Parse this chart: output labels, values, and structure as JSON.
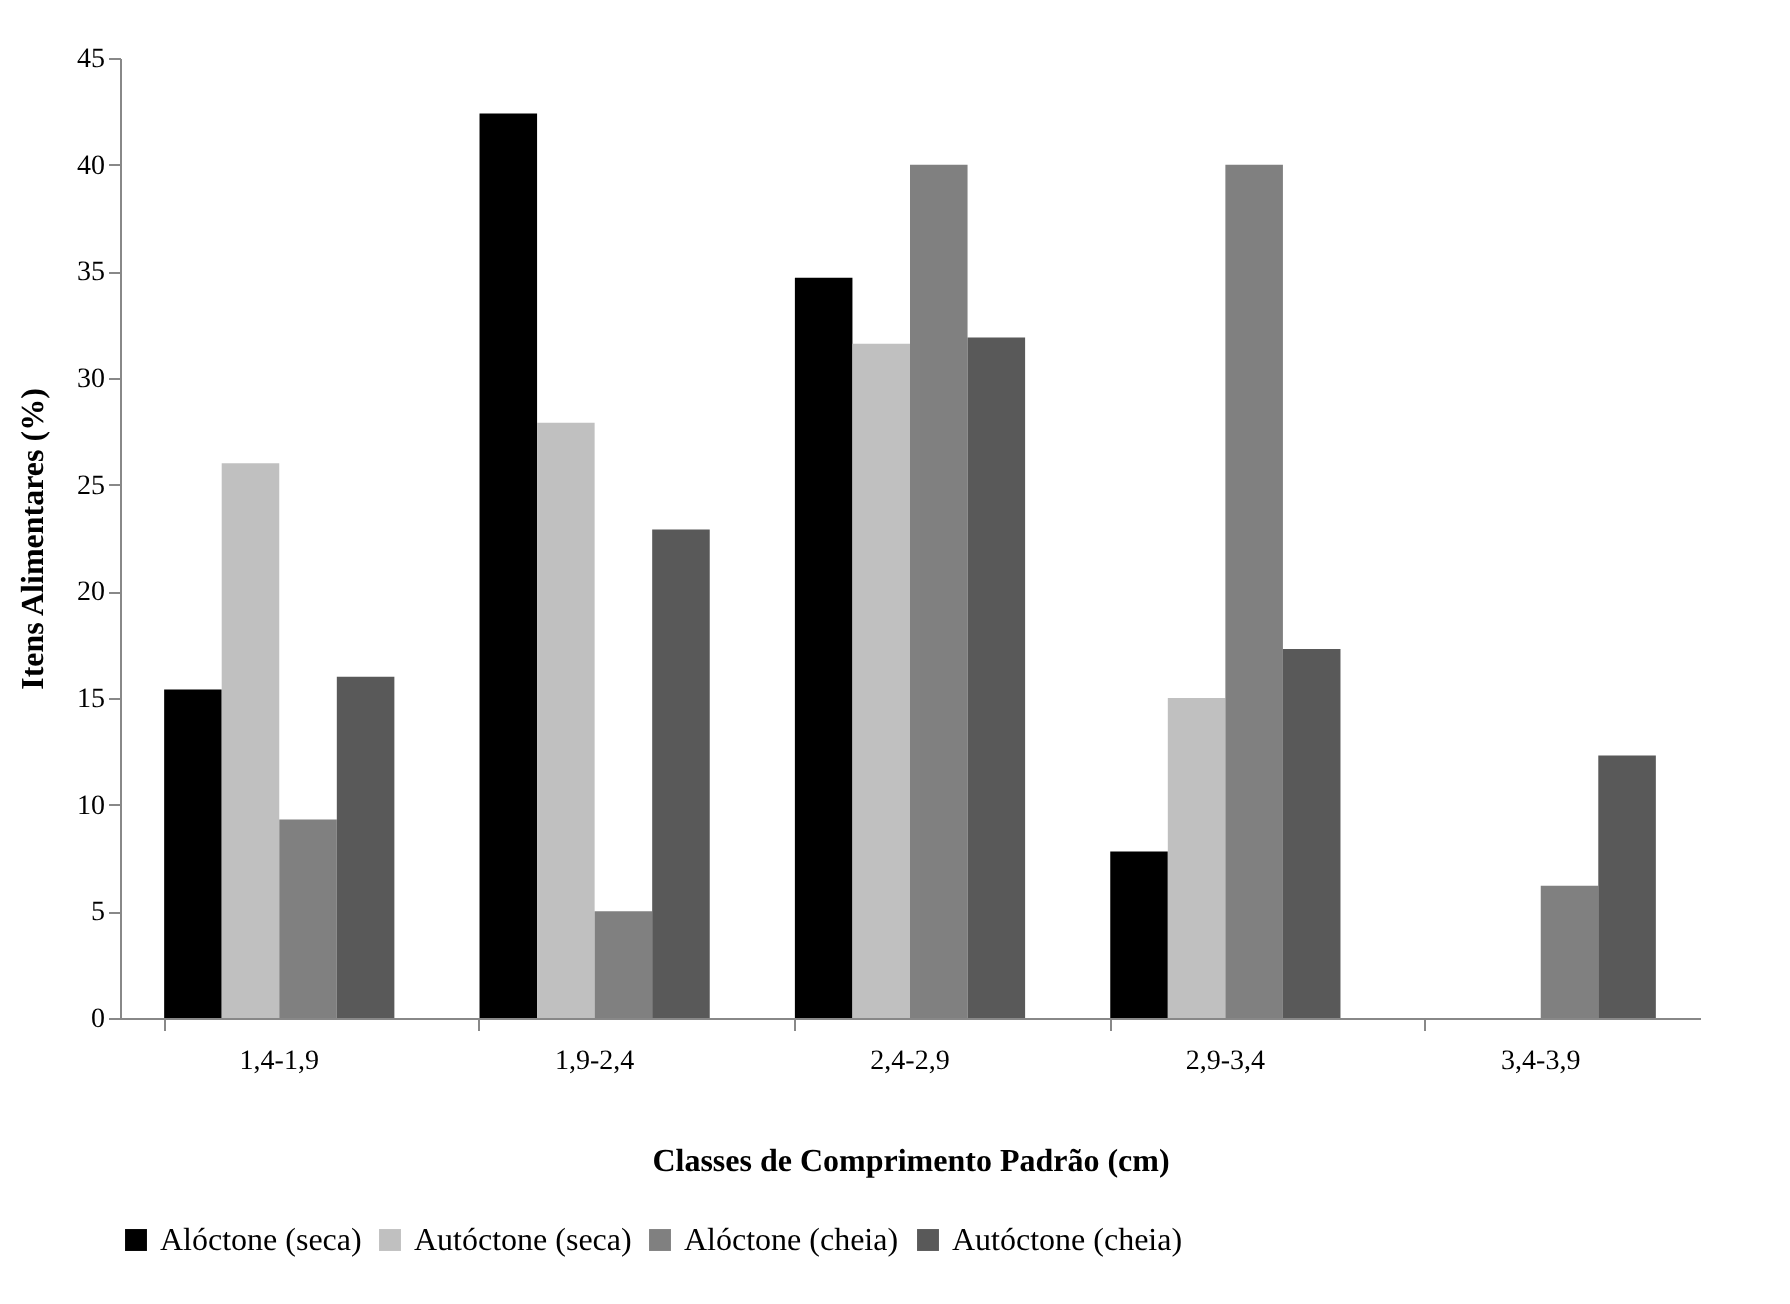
{
  "chart_data": {
    "type": "bar",
    "xlabel": "Classes de Comprimento  Padrão  (cm)",
    "ylabel": "Itens Alimentares  (%)",
    "categories": [
      "1,4-1,9",
      "1,9-2,4",
      "2,4-2,9",
      "2,9-3,4",
      "3,4-3,9"
    ],
    "series": [
      {
        "name": "Alóctone (seca)",
        "color": "#000000",
        "values": [
          15.4,
          42.4,
          34.7,
          7.8,
          0
        ]
      },
      {
        "name": "Autóctone (seca)",
        "color": "#c0c0c0",
        "values": [
          26.0,
          27.9,
          31.6,
          15.0,
          0
        ]
      },
      {
        "name": "Alóctone (cheia)",
        "color": "#808080",
        "values": [
          9.3,
          5.0,
          40.0,
          40.0,
          6.2
        ]
      },
      {
        "name": "Autóctone (cheia)",
        "color": "#595959",
        "values": [
          16.0,
          22.9,
          31.9,
          17.3,
          12.3
        ]
      }
    ],
    "ylim": [
      0,
      45
    ],
    "yticks": [
      0,
      5,
      10,
      15,
      20,
      25,
      30,
      35,
      40,
      45
    ],
    "grid": false,
    "legend": "bottom"
  }
}
